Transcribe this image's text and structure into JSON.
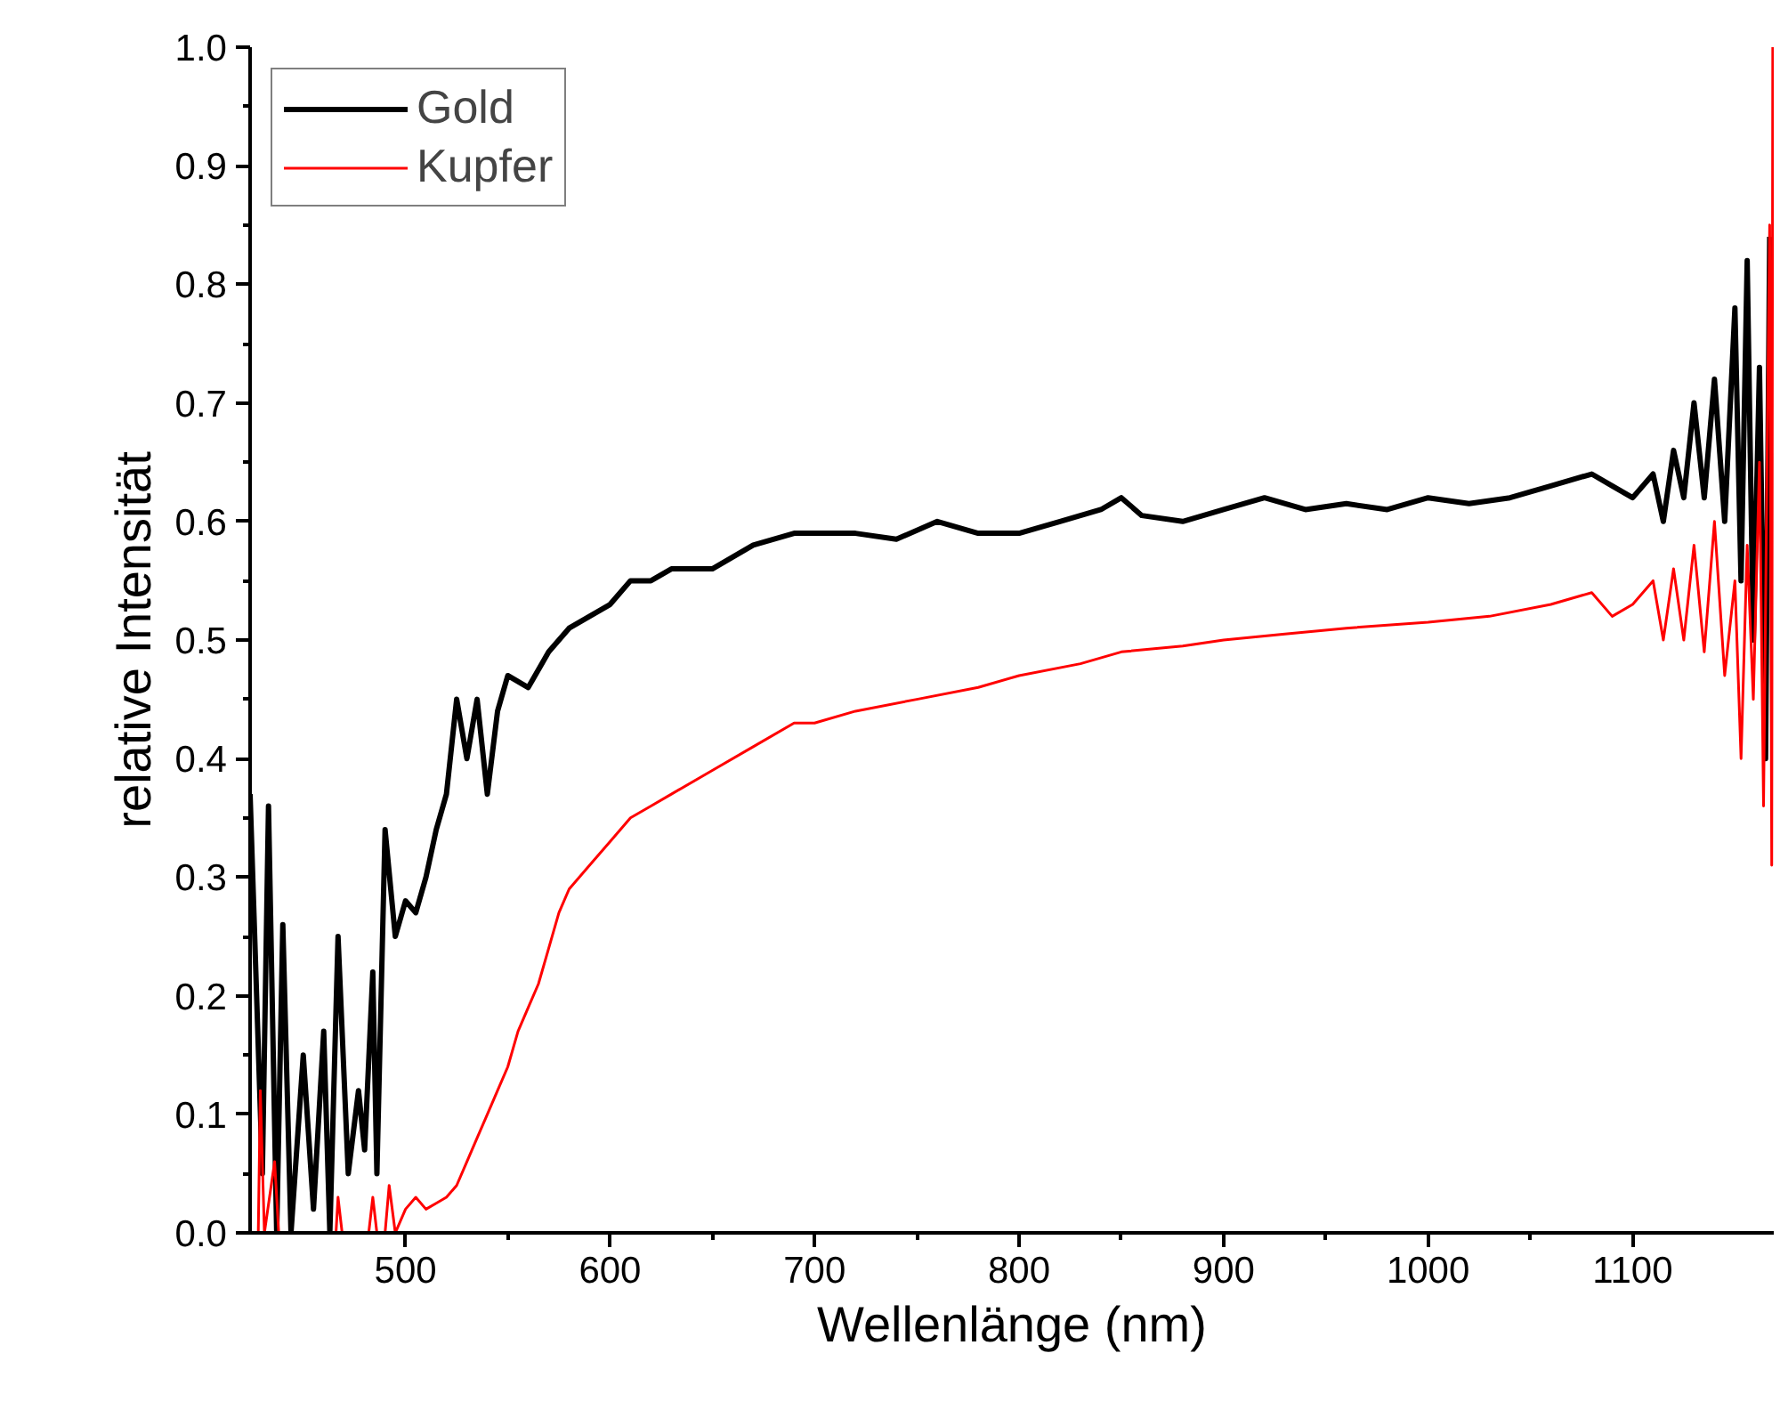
{
  "chart_data": {
    "type": "line",
    "xlabel": "Wellenlänge (nm)",
    "ylabel": "relative Intensität",
    "xlim": [
      424,
      1169
    ],
    "ylim": [
      0,
      1
    ],
    "xticks": [
      500,
      600,
      700,
      800,
      900,
      1000,
      1100
    ],
    "yticks": [
      {
        "value": 0,
        "label": "0.0"
      },
      0.1,
      0.2,
      0.3,
      0.4,
      0.5,
      0.6,
      0.7,
      0.8,
      0.9,
      {
        "value": 1,
        "label": "1.0"
      }
    ],
    "grid": false,
    "legend": "top left",
    "line_style": "solid",
    "marker": "none",
    "series": [
      {
        "name": "Gold",
        "color": "#000000",
        "x": [
          424,
          430,
          433,
          437,
          440,
          444,
          450,
          455,
          460,
          463,
          467,
          472,
          477,
          480,
          484,
          486,
          490,
          495,
          500,
          505,
          510,
          515,
          520,
          525,
          530,
          535,
          540,
          545,
          550,
          560,
          570,
          580,
          590,
          600,
          610,
          620,
          630,
          650,
          670,
          690,
          700,
          720,
          740,
          760,
          780,
          800,
          820,
          840,
          850,
          860,
          880,
          900,
          920,
          940,
          960,
          980,
          1000,
          1020,
          1040,
          1060,
          1080,
          1090,
          1100,
          1110,
          1115,
          1120,
          1125,
          1130,
          1135,
          1140,
          1145,
          1150,
          1153,
          1156,
          1159,
          1162,
          1165,
          1167
        ],
        "values": [
          0.37,
          0.05,
          0.36,
          0.0,
          0.26,
          0.0,
          0.15,
          0.02,
          0.17,
          0.0,
          0.25,
          0.05,
          0.12,
          0.07,
          0.22,
          0.05,
          0.34,
          0.25,
          0.28,
          0.27,
          0.3,
          0.34,
          0.37,
          0.45,
          0.4,
          0.45,
          0.37,
          0.44,
          0.47,
          0.46,
          0.49,
          0.51,
          0.52,
          0.53,
          0.55,
          0.55,
          0.56,
          0.56,
          0.58,
          0.59,
          0.59,
          0.59,
          0.585,
          0.6,
          0.59,
          0.59,
          0.6,
          0.61,
          0.62,
          0.605,
          0.6,
          0.61,
          0.62,
          0.61,
          0.615,
          0.61,
          0.62,
          0.615,
          0.62,
          0.63,
          0.64,
          0.63,
          0.62,
          0.64,
          0.6,
          0.66,
          0.62,
          0.7,
          0.62,
          0.72,
          0.6,
          0.78,
          0.55,
          0.82,
          0.5,
          0.73,
          0.4,
          0.84
        ]
      },
      {
        "name": "Kupfer",
        "color": "#ff0000",
        "x": [
          428,
          429,
          431,
          436,
          438,
          466,
          467,
          469,
          482,
          484,
          486,
          490,
          492,
          495,
          500,
          505,
          510,
          515,
          520,
          525,
          530,
          535,
          540,
          545,
          550,
          555,
          560,
          565,
          570,
          575,
          580,
          590,
          600,
          610,
          620,
          630,
          650,
          670,
          690,
          700,
          720,
          750,
          780,
          800,
          830,
          850,
          880,
          900,
          930,
          960,
          1000,
          1030,
          1060,
          1080,
          1090,
          1100,
          1110,
          1115,
          1120,
          1125,
          1130,
          1135,
          1140,
          1145,
          1150,
          1153,
          1156,
          1159,
          1162,
          1164,
          1166,
          1167,
          1168,
          1168.5
        ],
        "values": [
          0.0,
          0.12,
          0.0,
          0.06,
          0.0,
          0.0,
          0.03,
          0.0,
          0.0,
          0.03,
          0.0,
          0.0,
          0.04,
          0.0,
          0.02,
          0.03,
          0.02,
          0.025,
          0.03,
          0.04,
          0.06,
          0.08,
          0.1,
          0.12,
          0.14,
          0.17,
          0.19,
          0.21,
          0.24,
          0.27,
          0.29,
          0.31,
          0.33,
          0.35,
          0.36,
          0.37,
          0.39,
          0.41,
          0.43,
          0.43,
          0.44,
          0.45,
          0.46,
          0.47,
          0.48,
          0.49,
          0.495,
          0.5,
          0.505,
          0.51,
          0.515,
          0.52,
          0.53,
          0.54,
          0.52,
          0.53,
          0.55,
          0.5,
          0.56,
          0.5,
          0.58,
          0.49,
          0.6,
          0.47,
          0.55,
          0.4,
          0.58,
          0.45,
          0.65,
          0.36,
          0.7,
          0.85,
          0.31,
          1.0
        ]
      }
    ]
  }
}
